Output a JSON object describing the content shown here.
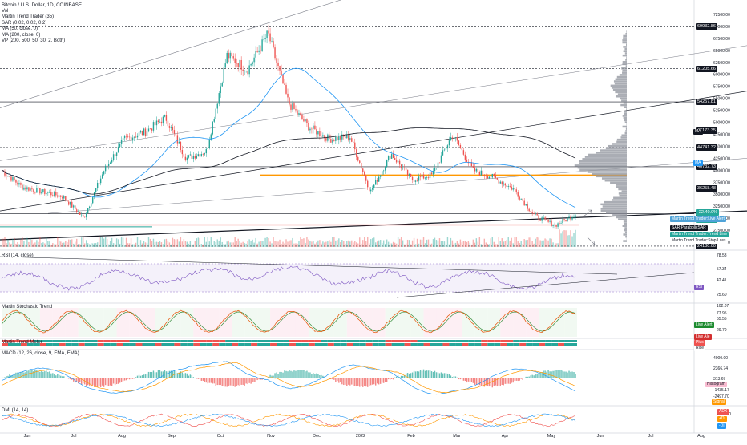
{
  "chart_title": "Bitcoin / U.S. Dollar, 1D, COINBASE",
  "indicators": [
    "Vol",
    "Martin Trend Trader (35)",
    "SAR (0.02, 0.02, 0.2)",
    "MA (50, close, 0)",
    "MA (200, close, 0)",
    "VP (200, 500, 50, 30, 2, Both)"
  ],
  "panes": {
    "rsi": "RSI (14, close)",
    "stoch": "Martin Stochastic Trend",
    "meter": "Martin Trend Meter",
    "macd": "MACD (12, 26, close, 9, EMA, EMA)",
    "dmi": "DMI (14, 14)"
  },
  "price_axis_ticks": [
    "72500.00",
    "70000.00",
    "67500.00",
    "65000.00",
    "62500.00",
    "60000.00",
    "57500.00",
    "55000.00",
    "52500.00",
    "50000.00",
    "47500.00",
    "45000.00",
    "42500.00",
    "40000.00",
    "37500.00",
    "35000.00",
    "32500.00",
    "30000.00",
    "27500.00",
    "25000.00"
  ],
  "price_tags": [
    {
      "label": "69932.86",
      "color": "#131722",
      "text": "#ffffff",
      "price": 69932.86
    },
    {
      "label": "61205.66",
      "color": "#131722",
      "text": "#ffffff",
      "price": 61205.66
    },
    {
      "label": "54257.81",
      "color": "#131722",
      "text": "#ffffff",
      "price": 54257.81
    },
    {
      "label": "48173.35",
      "color": "#131722",
      "text": "#ffffff",
      "price": 48173.35
    },
    {
      "label": "44741.32",
      "color": "#131722",
      "text": "#ffffff",
      "price": 44741.32
    },
    {
      "label": "40732.73",
      "color": "#131722",
      "text": "#ffffff",
      "price": 40732.73
    },
    {
      "label": "36258.48",
      "color": "#131722",
      "text": "#ffffff",
      "price": 36258.48
    },
    {
      "label": "30907.85",
      "color": "#131722",
      "text": "#ffffff",
      "price": 30907.85
    },
    {
      "label": "29625.86",
      "color": "#26a69a",
      "text": "#ffffff",
      "price": 29625.86
    },
    {
      "label": "24180.00",
      "color": "#131722",
      "text": "#ffffff",
      "price": 24180.0
    }
  ],
  "last_change": "-22.40.0%",
  "badges": {
    "ma": "MA",
    "vp_ma": "MA",
    "live_alert": "Martin Trend Trader:Live Alert",
    "sar": "SAR:ParabolicSAR",
    "trend_line": "Martin Trend Trader:Trend Line",
    "stop_loss": "Martin Trend Trader:Stop Loss",
    "rsi": "RSI",
    "stoch_live": "Live Alert",
    "stoch_alert": "Live Ale",
    "stoch_plus": "Plus",
    "stoch_rise": "Rise",
    "histogram": "Histogram",
    "signal": "Signal",
    "adx": "ADX",
    "di_plus": "+DI",
    "di_minus": "-DI"
  },
  "rsi_ticks": [
    "78.53",
    "57.34",
    "42.41",
    "25.60"
  ],
  "stoch_ticks": [
    "102.07",
    "77.95",
    "55.55",
    "29.70"
  ],
  "macd_ticks": [
    "4000.00",
    "2366.74",
    "313.67",
    "-1435.17",
    "-2497.70"
  ],
  "dmi_ticks": [
    "40.0000"
  ],
  "months": [
    "Jun",
    "Jul",
    "Aug",
    "Sep",
    "Oct",
    "Nov",
    "Dec",
    "2022",
    "Feb",
    "Mar",
    "Apr",
    "May",
    "Jun",
    "Jul",
    "Aug"
  ],
  "colors": {
    "up": "#26a69a",
    "down": "#ef5350",
    "ma50": "#2196f3",
    "ma200": "#131722",
    "vp": "#9598a1",
    "orange": "#ff9800",
    "rsi": "#7e57c2",
    "stoch_k": "#e65100",
    "stoch_d": "#388e3c"
  },
  "chart_data": {
    "type": "line",
    "title": "Bitcoin / U.S. Dollar, 1D, COINBASE",
    "x": [
      "2021-05-20",
      "2021-06-01",
      "2021-06-20",
      "2021-07-01",
      "2021-07-20",
      "2021-08-01",
      "2021-08-15",
      "2021-09-01",
      "2021-09-07",
      "2021-09-21",
      "2021-10-01",
      "2021-10-20",
      "2021-11-01",
      "2021-11-10",
      "2021-11-26",
      "2021-12-04",
      "2021-12-20",
      "2022-01-01",
      "2022-01-22",
      "2022-02-10",
      "2022-02-24",
      "2022-03-10",
      "2022-03-28",
      "2022-04-10",
      "2022-04-25",
      "2022-05-05",
      "2022-05-09",
      "2022-05-12",
      "2022-05-15"
    ],
    "series": [
      {
        "values": [
          40000,
          36500,
          35500,
          34500,
          30000,
          40000,
          46500,
          48000,
          51000,
          42500,
          44000,
          64000,
          61000,
          68500,
          54000,
          49000,
          46500,
          47000,
          35500,
          43500,
          38000,
          39000,
          47500,
          40000,
          38500,
          36000,
          30500,
          28500,
          30800
        ]
      }
    ],
    "ylim": [
      24000,
      73500
    ],
    "price_tags": [
      69932.86,
      61205.66,
      54257.81,
      48173.35,
      44741.32,
      40732.73,
      36258.48,
      30907.85,
      29625.86,
      24180.0
    ]
  }
}
